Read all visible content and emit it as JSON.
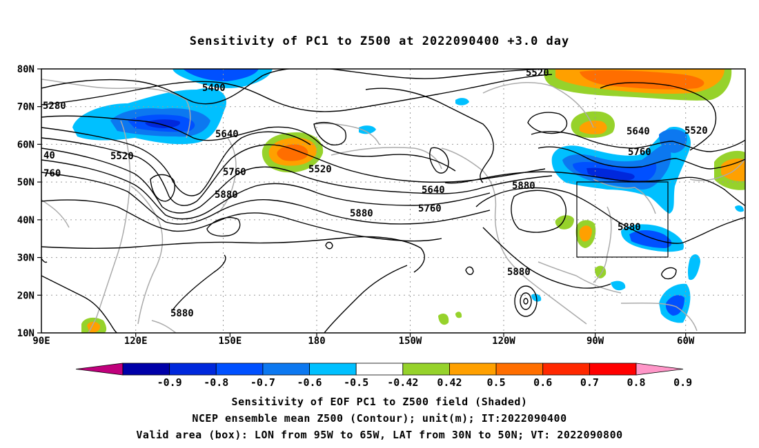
{
  "title": "Sensitivity of PC1 to Z500 at 2022090400 +3.0 day",
  "lat_labels": [
    "80N",
    "70N",
    "60N",
    "50N",
    "40N",
    "30N",
    "20N",
    "10N"
  ],
  "lon_labels": [
    "90E",
    "120E",
    "150E",
    "180",
    "150W",
    "120W",
    "90W",
    "60W"
  ],
  "contour_labels": [
    "5520",
    "5400",
    "5280",
    "5640",
    "5520",
    "40",
    "760",
    "5760",
    "5880",
    "5520",
    "5640",
    "5760",
    "5880",
    "5880",
    "5880",
    "5640",
    "5520",
    "5760",
    "5880",
    "5880"
  ],
  "colorbar": {
    "tick_labels": [
      "-0.9",
      "-0.8",
      "-0.7",
      "-0.6",
      "-0.5",
      "-0.42",
      "0.42",
      "0.5",
      "0.6",
      "0.7",
      "0.8",
      "0.9"
    ],
    "colors": [
      "#c0007c",
      "#0000a8",
      "#0028dc",
      "#0050ff",
      "#0c78f0",
      "#00c0ff",
      "#ffffff",
      "#96d22b",
      "#ffa000",
      "#ff6e00",
      "#ff2800",
      "#ff0000",
      "#ff96c8"
    ]
  },
  "captions": {
    "line1": "Sensitivity of EOF PC1 to Z500 field (Shaded)",
    "line2": "NCEP ensemble mean Z500 (Contour); unit(m); IT:2022090400",
    "line3": "Valid area (box): LON from 95W to 65W, LAT from 30N to 50N; VT: 2022090800"
  }
}
